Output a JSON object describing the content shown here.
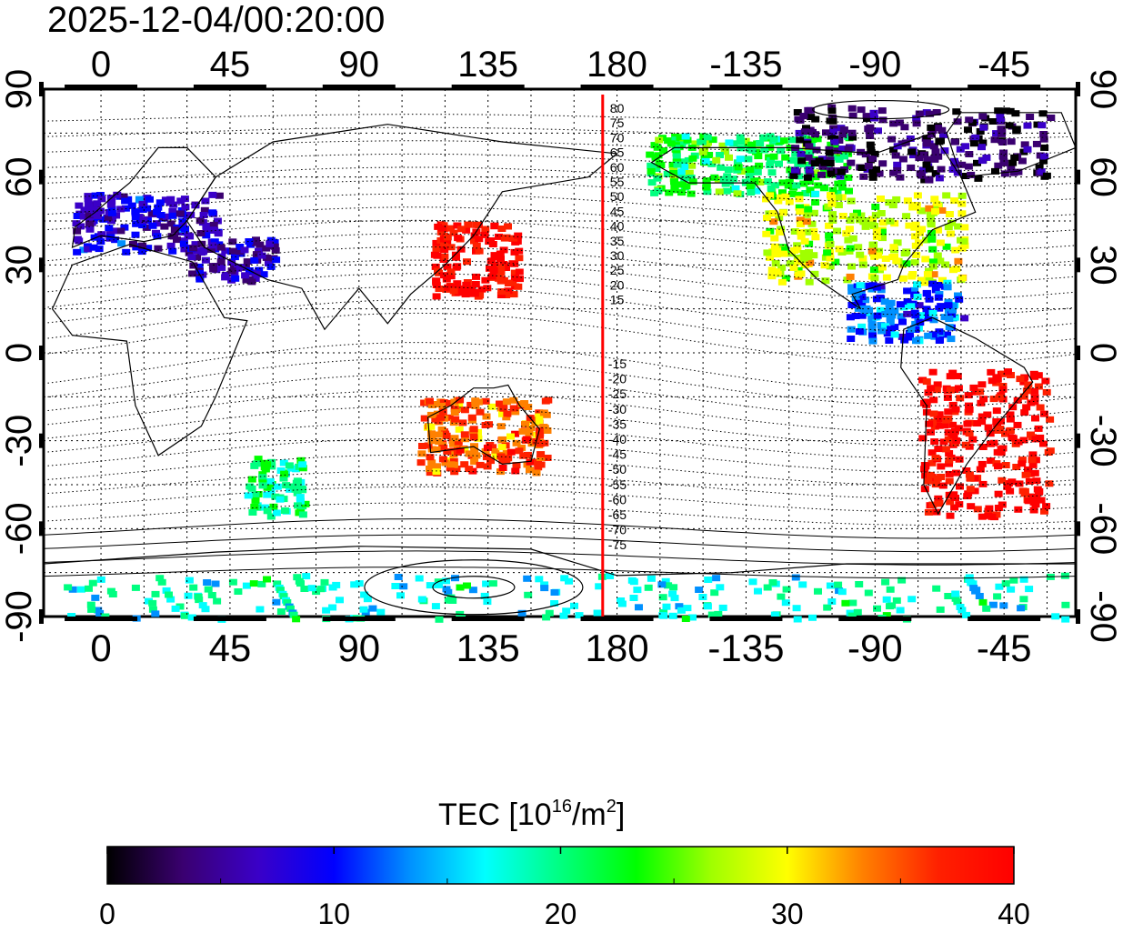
{
  "title": "2025-12-04/00:20:00",
  "map": {
    "x_ticks": [
      "0",
      "45",
      "90",
      "135",
      "180",
      "-135",
      "-90",
      "-45"
    ],
    "x_tick_lon": [
      0,
      45,
      90,
      135,
      180,
      225,
      270,
      315
    ],
    "y_ticks": [
      "90",
      "60",
      "30",
      "0",
      "-30",
      "-60",
      "-90"
    ],
    "y_tick_lat": [
      90,
      60,
      30,
      0,
      -30,
      -60,
      -90
    ],
    "lon_range": [
      -20,
      340
    ],
    "lat_range": [
      -90,
      90
    ],
    "grid": true,
    "red_meridian_lon": 175,
    "contour_labels_north": [
      "80",
      "75",
      "70",
      "65",
      "60",
      "55",
      "50",
      "45",
      "40",
      "35",
      "30",
      "25",
      "20",
      "15"
    ],
    "contour_labels_south": [
      "-15",
      "-20",
      "-25",
      "-30",
      "-35",
      "-40",
      "-45",
      "-50",
      "-55",
      "-60",
      "-65",
      "-70",
      "-75"
    ]
  },
  "colorbar": {
    "label_main": "TEC  [10",
    "label_sup1": "16",
    "label_mid": "/m",
    "label_sup2": "2",
    "label_end": "]",
    "ticks": [
      "0",
      "10",
      "20",
      "30",
      "40"
    ],
    "tick_values": [
      0,
      10,
      20,
      30,
      40
    ],
    "range": [
      0,
      40
    ],
    "colors": [
      "#000000",
      "#3a0070",
      "#3a00c8",
      "#0000ff",
      "#0090ff",
      "#00ffff",
      "#00ff80",
      "#00ff00",
      "#a0ff00",
      "#ffff00",
      "#ff8000",
      "#ff2000",
      "#ff0000"
    ]
  },
  "tec_regions": [
    {
      "name": "europe",
      "lon": [
        -10,
        40
      ],
      "lat": [
        35,
        55
      ],
      "tec": 8
    },
    {
      "name": "middle-east",
      "lon": [
        30,
        60
      ],
      "lat": [
        25,
        40
      ],
      "tec": 6
    },
    {
      "name": "japan-china",
      "lon": [
        115,
        145
      ],
      "lat": [
        20,
        45
      ],
      "tec": 40
    },
    {
      "name": "alaska-canada",
      "lon": [
        190,
        260
      ],
      "lat": [
        55,
        75
      ],
      "tec": 22
    },
    {
      "name": "arctic-canada",
      "lon": [
        240,
        330
      ],
      "lat": [
        60,
        85
      ],
      "tec": 3
    },
    {
      "name": "north-america",
      "lon": [
        230,
        300
      ],
      "lat": [
        25,
        55
      ],
      "tec": 28
    },
    {
      "name": "central-america",
      "lon": [
        260,
        300
      ],
      "lat": [
        5,
        25
      ],
      "tec": 12
    },
    {
      "name": "south-america",
      "lon": [
        285,
        330
      ],
      "lat": [
        -55,
        -5
      ],
      "tec": 40
    },
    {
      "name": "antarctica",
      "lon": [
        -20,
        340
      ],
      "lat": [
        -90,
        -75
      ],
      "tec": 18
    },
    {
      "name": "southern-africa",
      "lon": [
        50,
        70
      ],
      "lat": [
        -55,
        -35
      ],
      "tec": 20
    },
    {
      "name": "australia",
      "lon": [
        110,
        155
      ],
      "lat": [
        -40,
        -15
      ],
      "tec": 35
    }
  ]
}
